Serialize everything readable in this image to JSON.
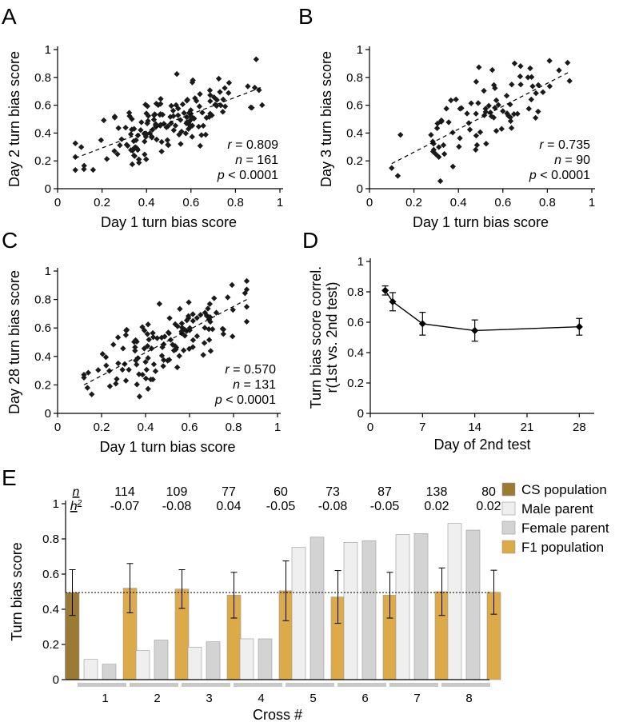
{
  "chart_data": [
    {
      "panel": "A",
      "type": "scatter",
      "xlabel": "Day 1 turn bias score",
      "ylabel": "Day 2 turn bias score",
      "xlim": [
        0,
        1
      ],
      "ylim": [
        0,
        1
      ],
      "xticks": [
        "0",
        "0.2",
        "0.4",
        "0.6",
        "0.8",
        "1"
      ],
      "yticks": [
        "0",
        "0.2",
        "0.4",
        "0.6",
        "0.8",
        "1"
      ],
      "stats": {
        "r_label": "r",
        "r_value": "= 0.809",
        "n_label": "n",
        "n_value": "= 161",
        "p_label": "p",
        "p_value": "< 0.0001"
      },
      "fit": {
        "x": [
          0.08,
          0.92
        ],
        "y": [
          0.22,
          0.73
        ]
      },
      "n": 161,
      "seed": 11
    },
    {
      "panel": "B",
      "type": "scatter",
      "xlabel": "Day 1 turn bias score",
      "ylabel": "Day 3 turn bias score",
      "xlim": [
        0,
        1
      ],
      "ylim": [
        0,
        1
      ],
      "xticks": [
        "0",
        "0.2",
        "0.4",
        "0.6",
        "0.8",
        "1"
      ],
      "yticks": [
        "0",
        "0.2",
        "0.4",
        "0.6",
        "0.8",
        "1"
      ],
      "stats": {
        "r_label": "r",
        "r_value": "= 0.735",
        "n_label": "n",
        "n_value": "= 90",
        "p_label": "p",
        "p_value": "< 0.0001"
      },
      "fit": {
        "x": [
          0.1,
          0.9
        ],
        "y": [
          0.18,
          0.84
        ]
      },
      "n": 90,
      "seed": 23
    },
    {
      "panel": "C",
      "type": "scatter",
      "xlabel": "Day 1 turn bias score",
      "ylabel": "Day 28 turn bias score",
      "xlim": [
        0,
        1
      ],
      "ylim": [
        0,
        1
      ],
      "xticks": [
        "0",
        "0.2",
        "0.4",
        "0.6",
        "0.8",
        "1"
      ],
      "yticks": [
        "0",
        "0.2",
        "0.4",
        "0.6",
        "0.8",
        "1"
      ],
      "stats": {
        "r_label": "r",
        "r_value": "= 0.570",
        "n_label": "n",
        "n_value": "= 131",
        "p_label": "p",
        "p_value": "< 0.0001"
      },
      "fit": {
        "x": [
          0.12,
          0.86
        ],
        "y": [
          0.2,
          0.8
        ]
      },
      "n": 131,
      "seed": 37
    },
    {
      "panel": "D",
      "type": "line",
      "xlabel": "Day of 2nd test",
      "ylabel_line1": "Turn bias score correl.",
      "ylabel_line2": "r(1st vs. 2nd test)",
      "xlim": [
        0,
        30
      ],
      "ylim": [
        0,
        1
      ],
      "xticks": [
        "0",
        "7",
        "14",
        "21",
        "28"
      ],
      "yticks": [
        "0",
        "0.2",
        "0.4",
        "0.6",
        "0.8",
        "1"
      ],
      "x": [
        2,
        3,
        7,
        14,
        28
      ],
      "y": [
        0.809,
        0.735,
        0.59,
        0.545,
        0.57
      ],
      "err": [
        0.03,
        0.06,
        0.075,
        0.07,
        0.055
      ]
    },
    {
      "panel": "E",
      "type": "bar",
      "ylabel": "Turn bias score",
      "xlabel": "Cross #",
      "ylim": [
        0,
        1
      ],
      "yticks": [
        "0",
        "0.2",
        "0.4",
        "0.6",
        "0.8",
        "1"
      ],
      "reference_line": 0.495,
      "cs_population": {
        "value": 0.495,
        "err": 0.13
      },
      "n_label": "n",
      "h2_label": "h",
      "crosses": [
        {
          "label": "1",
          "n": "114",
          "h2": "-0.07",
          "male": 0.115,
          "female": 0.088,
          "f1": 0.52,
          "f1_err": 0.14
        },
        {
          "label": "2",
          "n": "109",
          "h2": "-0.08",
          "male": 0.165,
          "female": 0.225,
          "f1": 0.515,
          "f1_err": 0.11
        },
        {
          "label": "3",
          "n": "77",
          "h2": "0.04",
          "male": 0.185,
          "female": 0.215,
          "f1": 0.48,
          "f1_err": 0.13
        },
        {
          "label": "4",
          "n": "60",
          "h2": "-0.05",
          "male": 0.232,
          "female": 0.232,
          "f1": 0.505,
          "f1_err": 0.17
        },
        {
          "label": "5",
          "n": "73",
          "h2": "-0.08",
          "male": 0.752,
          "female": 0.81,
          "f1": 0.47,
          "f1_err": 0.15
        },
        {
          "label": "6",
          "n": "87",
          "h2": "-0.05",
          "male": 0.78,
          "female": 0.79,
          "f1": 0.48,
          "f1_err": 0.13
        },
        {
          "label": "7",
          "n": "138",
          "h2": "0.02",
          "male": 0.825,
          "female": 0.83,
          "f1": 0.5,
          "f1_err": 0.135
        },
        {
          "label": "8",
          "n": "80",
          "h2": "0.02",
          "male": 0.888,
          "female": 0.85,
          "f1": 0.497,
          "f1_err": 0.125
        }
      ],
      "legend": [
        {
          "label": "CS population",
          "color": "#9a7a35"
        },
        {
          "label": "Male parent",
          "color": "#efefef"
        },
        {
          "label": "Female parent",
          "color": "#d3d3d3"
        },
        {
          "label": "F1 population",
          "color": "#dcaa48"
        }
      ]
    }
  ],
  "panel_labels": [
    "A",
    "B",
    "C",
    "D",
    "E"
  ]
}
